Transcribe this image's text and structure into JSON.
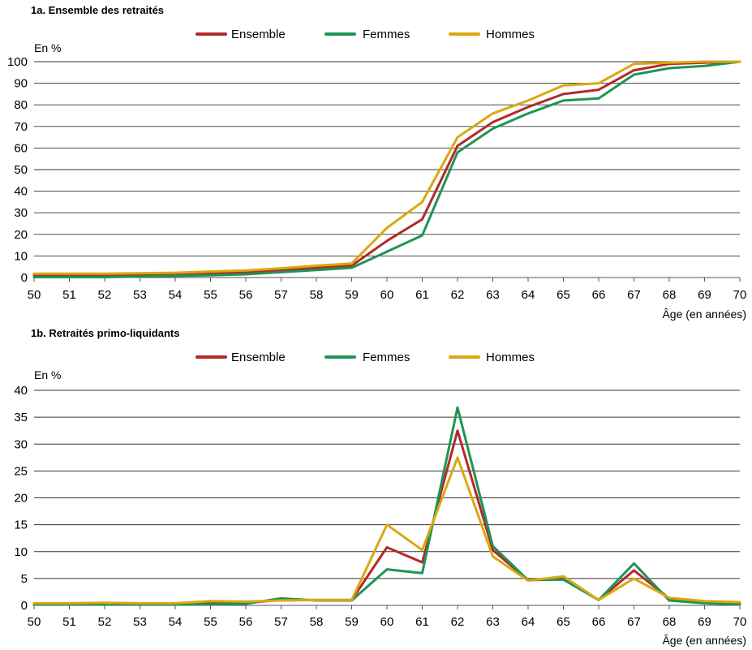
{
  "chart_data": [
    {
      "type": "line",
      "title": "1a. Ensemble des retraités",
      "unit": "En %",
      "xlabel": "Âge (en années)",
      "ylabel": "",
      "x": [
        50,
        51,
        52,
        53,
        54,
        55,
        56,
        57,
        58,
        59,
        60,
        61,
        62,
        63,
        64,
        65,
        66,
        67,
        68,
        69,
        70
      ],
      "xlim": [
        50,
        70
      ],
      "ylim": [
        0,
        100
      ],
      "yticks": [
        0,
        10,
        20,
        30,
        40,
        50,
        60,
        70,
        80,
        90,
        100
      ],
      "grid": "horizontal",
      "legend": "top-center",
      "series": [
        {
          "name": "Ensemble",
          "color": "#b22a2a",
          "values": [
            1,
            1,
            1,
            1.3,
            1.5,
            2,
            2.5,
            3.5,
            4.5,
            5.5,
            17,
            27,
            61,
            72,
            79,
            85,
            87,
            96,
            99,
            99.5,
            100
          ]
        },
        {
          "name": "Femmes",
          "color": "#1f9456",
          "values": [
            0.2,
            0.2,
            0.2,
            0.5,
            0.8,
            1,
            1.5,
            2.5,
            3.5,
            4.5,
            12,
            19.5,
            58,
            69,
            76,
            82,
            83,
            94,
            97,
            98,
            100
          ]
        },
        {
          "name": "Hommes",
          "color": "#dba80f",
          "values": [
            1.8,
            1.8,
            1.8,
            2,
            2.2,
            2.8,
            3.3,
            4.3,
            5.5,
            6.5,
            23,
            35,
            65,
            76,
            82,
            89,
            90,
            99,
            99.5,
            100,
            100
          ]
        }
      ]
    },
    {
      "type": "line",
      "title": "1b. Retraités primo-liquidants",
      "unit": "En %",
      "xlabel": "Âge (en années)",
      "ylabel": "",
      "x": [
        50,
        51,
        52,
        53,
        54,
        55,
        56,
        57,
        58,
        59,
        60,
        61,
        62,
        63,
        64,
        65,
        66,
        67,
        68,
        69,
        70
      ],
      "xlim": [
        50,
        70
      ],
      "ylim": [
        0,
        40
      ],
      "yticks": [
        0,
        5,
        10,
        15,
        20,
        25,
        30,
        35,
        40
      ],
      "grid": "horizontal",
      "legend": "top-center",
      "series": [
        {
          "name": "Ensemble",
          "color": "#b22a2a",
          "values": [
            0.3,
            0.3,
            0.3,
            0.3,
            0.3,
            0.5,
            0.5,
            1,
            1,
            1,
            10.8,
            8,
            32.5,
            10.3,
            4.7,
            5,
            1,
            6.5,
            1.3,
            0.6,
            0.4
          ]
        },
        {
          "name": "Femmes",
          "color": "#1f9456",
          "values": [
            0.2,
            0.2,
            0.2,
            0.2,
            0.2,
            0.2,
            0.3,
            1.3,
            0.9,
            0.9,
            6.7,
            6,
            36.8,
            11,
            4.7,
            4.8,
            1,
            7.8,
            0.9,
            0.4,
            0.2
          ]
        },
        {
          "name": "Hommes",
          "color": "#dba80f",
          "values": [
            0.4,
            0.4,
            0.5,
            0.4,
            0.4,
            0.8,
            0.7,
            0.9,
            1,
            1,
            15,
            10.3,
            27.5,
            9.1,
            4.6,
            5.4,
            1,
            5,
            1.4,
            0.8,
            0.6
          ]
        }
      ]
    }
  ]
}
